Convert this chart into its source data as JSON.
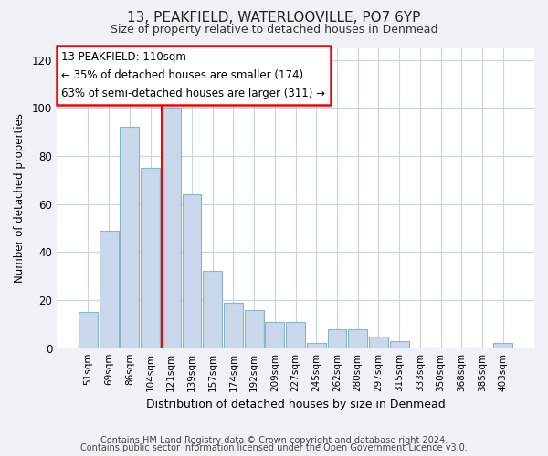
{
  "title": "13, PEAKFIELD, WATERLOOVILLE, PO7 6YP",
  "subtitle": "Size of property relative to detached houses in Denmead",
  "xlabel": "Distribution of detached houses by size in Denmead",
  "ylabel": "Number of detached properties",
  "bar_color": "#c8d8ea",
  "bar_edge_color": "#8ab4cc",
  "categories": [
    "51sqm",
    "69sqm",
    "86sqm",
    "104sqm",
    "121sqm",
    "139sqm",
    "157sqm",
    "174sqm",
    "192sqm",
    "209sqm",
    "227sqm",
    "245sqm",
    "262sqm",
    "280sqm",
    "297sqm",
    "315sqm",
    "333sqm",
    "350sqm",
    "368sqm",
    "385sqm",
    "403sqm"
  ],
  "values": [
    15,
    49,
    92,
    75,
    100,
    64,
    32,
    19,
    16,
    11,
    11,
    2,
    8,
    8,
    5,
    3,
    0,
    0,
    0,
    0,
    2
  ],
  "ylim": [
    0,
    125
  ],
  "yticks": [
    0,
    20,
    40,
    60,
    80,
    100,
    120
  ],
  "annotation_box_text": "13 PEAKFIELD: 110sqm\n← 35% of detached houses are smaller (174)\n63% of semi-detached houses are larger (311) →",
  "footnote1": "Contains HM Land Registry data © Crown copyright and database right 2024.",
  "footnote2": "Contains public sector information licensed under the Open Government Licence v3.0.",
  "background_color": "#eef2f7",
  "plot_background": "#ffffff",
  "grid_color": "#c8d4de",
  "red_line_bar_index": 4
}
